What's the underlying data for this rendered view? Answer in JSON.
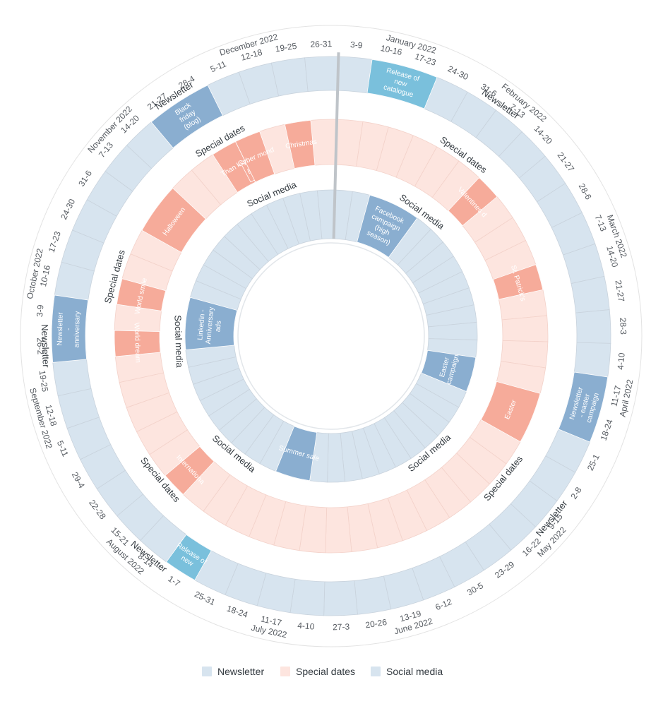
{
  "colors": {
    "newsletter_cell": "#d7e4ef",
    "newsletter_event": "#8aaed0",
    "newsletter_event_light": "#7ac0dc",
    "special_cell": "#fde5df",
    "special_event": "#f6ab9a",
    "social_cell": "#d7e4ef",
    "social_event": "#8aaed0",
    "divider": "#c9d3dd",
    "outer_line": "#e3e3e3"
  },
  "weeks": [
    "3-9",
    "10-16",
    "17-23",
    "24-30",
    "31-6",
    "7-13",
    "14-20",
    "21-27",
    "28-6",
    "7-13",
    "14-20",
    "21-27",
    "28-3",
    "4-10",
    "11-17",
    "18-24",
    "25-1",
    "2-8",
    "9-15",
    "16-22",
    "23-29",
    "30-5",
    "6-12",
    "13-19",
    "20-26",
    "27-3",
    "4-10",
    "11-17",
    "18-24",
    "25-31",
    "1-7",
    "8-14",
    "15-21",
    "22-28",
    "29-4",
    "5-11",
    "12-18",
    "19-25",
    "26-2",
    "3-9",
    "10-16",
    "17-23",
    "24-30",
    "31-6",
    "7-13",
    "14-20",
    "21-27",
    "28-4",
    "5-11",
    "12-18",
    "19-25",
    "26-31"
  ],
  "months": [
    {
      "label": "January 2022",
      "at": 2
    },
    {
      "label": "February 2022",
      "at": 5.5
    },
    {
      "label": "March 2022",
      "at": 10
    },
    {
      "label": "April 2022",
      "at": 14.5
    },
    {
      "label": "May 2022",
      "at": 19
    },
    {
      "label": "June 2022",
      "at": 23.5
    },
    {
      "label": "July 2022",
      "at": 27.5
    },
    {
      "label": "August 2022",
      "at": 32
    },
    {
      "label": "September 2022",
      "at": 36.5
    },
    {
      "label": "October 2022",
      "at": 40.5
    },
    {
      "label": "November 2022",
      "at": 45
    },
    {
      "label": "December 2022",
      "at": 49.5
    }
  ],
  "rings": [
    {
      "name": "Newsletter",
      "kind": "newsletter",
      "label_at": [
        5,
        18.5,
        31.5,
        38.5,
        47
      ],
      "events": [
        {
          "start": 1,
          "end": 3,
          "label": "Release of new catalogue",
          "tone": "light"
        },
        {
          "start": 14,
          "end": 16,
          "label": "Newsletter - easter campaign",
          "tone": "dark"
        },
        {
          "start": 30,
          "end": 31,
          "label": "Release of new",
          "tone": "light"
        },
        {
          "start": 38,
          "end": 40,
          "label": "Newsletter - anniversary",
          "tone": "dark"
        },
        {
          "start": 46,
          "end": 48,
          "label": "Black friday (blog)",
          "tone": "dark"
        }
      ]
    },
    {
      "name": "Special dates",
      "kind": "special",
      "label_at": [
        5,
        18.5,
        33,
        41,
        47.5
      ],
      "events": [
        {
          "start": 6,
          "end": 7,
          "label": "Valentines d",
          "tone": "dark"
        },
        {
          "start": 10,
          "end": 11,
          "label": "St. Patrick's",
          "tone": "dark"
        },
        {
          "start": 15,
          "end": 17,
          "label": "Easter",
          "tone": "dark"
        },
        {
          "start": 32,
          "end": 33,
          "label": "Internationa",
          "tone": "dark"
        },
        {
          "start": 38,
          "end": 39,
          "label": "World dream",
          "tone": "dark"
        },
        {
          "start": 40,
          "end": 41,
          "label": "World smile",
          "tone": "dark"
        },
        {
          "start": 43,
          "end": 45,
          "label": "Halloween",
          "tone": "dark"
        },
        {
          "start": 47,
          "end": 48,
          "label": "Than ksgi",
          "tone": "dark"
        },
        {
          "start": 47.8,
          "end": 48.6,
          "label": "Blac",
          "tone": "dark",
          "inset": true
        },
        {
          "start": 48,
          "end": 49,
          "label": "Cyber mond",
          "tone": "dark"
        },
        {
          "start": 50,
          "end": 51,
          "label": "Christmas",
          "tone": "dark"
        }
      ]
    },
    {
      "name": "Social media",
      "kind": "social",
      "label_at": [
        5,
        20,
        31.5,
        38.5,
        48.5
      ],
      "events": [
        {
          "start": 2,
          "end": 5,
          "label": "Facebook campaign (high season)",
          "tone": "dark"
        },
        {
          "start": 14,
          "end": 16,
          "label": "Easter campaign",
          "tone": "dark"
        },
        {
          "start": 27,
          "end": 29,
          "label": "Summer sale",
          "tone": "dark"
        },
        {
          "start": 38,
          "end": 41,
          "label": "Linkedin - Anniversary ads",
          "tone": "dark"
        }
      ]
    }
  ],
  "legend": [
    {
      "label": "Newsletter",
      "color": "#d7e4ef"
    },
    {
      "label": "Special dates",
      "color": "#fde5df"
    },
    {
      "label": "Social media",
      "color": "#d7e4ef"
    }
  ]
}
